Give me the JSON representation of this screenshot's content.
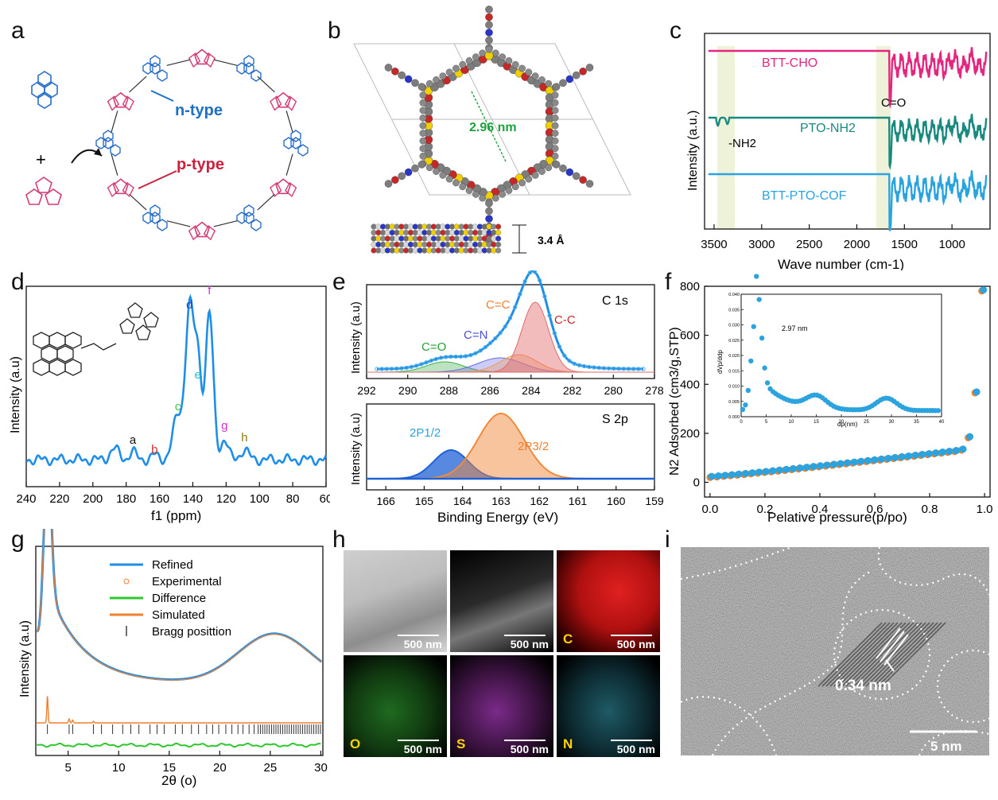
{
  "panel_labels": [
    "a",
    "b",
    "c",
    "d",
    "e",
    "f",
    "g",
    "h",
    "i"
  ],
  "panel_a": {
    "n_type": "n-type",
    "p_type": "p-type",
    "plus": "+"
  },
  "panel_b": {
    "pore": "2.96 nm",
    "spacing": "3.4 Å"
  },
  "colors": {
    "pink": "#e5267f",
    "teal": "#1a8a7f",
    "sky": "#2aa3de",
    "blue": "#1f8ee8",
    "orange": "#f07f2e",
    "green": "#2ec82e",
    "ink": "#111111"
  },
  "chart_data": [
    {
      "id": "c",
      "type": "line",
      "xlabel": "Wave number (cm-1)",
      "ylabel": "Intensity (a.u.)",
      "xlim": [
        3600,
        600
      ],
      "xticks": [
        3500,
        3000,
        2500,
        2000,
        1500,
        1000
      ],
      "series": [
        {
          "name": "BTT-CHO"
        },
        {
          "name": "PTO-NH2"
        },
        {
          "name": "BTT-PTO-COF"
        }
      ],
      "annotations": [
        "C=O",
        "-NH2"
      ]
    },
    {
      "id": "d",
      "type": "line",
      "xlabel": "f1 (ppm)",
      "ylabel": "Intensity (a.u)",
      "xlim": [
        240,
        60
      ],
      "xticks": [
        240,
        220,
        200,
        180,
        160,
        140,
        120,
        100,
        80,
        60
      ],
      "peaks": [
        {
          "label": "a",
          "x": 176
        },
        {
          "label": "b",
          "x": 163
        },
        {
          "label": "c",
          "x": 149
        },
        {
          "label": "d",
          "x": 142
        },
        {
          "label": "e",
          "x": 137
        },
        {
          "label": "f",
          "x": 130
        },
        {
          "label": "g",
          "x": 121
        },
        {
          "label": "h",
          "x": 109
        }
      ]
    },
    {
      "id": "e1",
      "type": "area",
      "title": "C 1s",
      "ylabel": "Intensity (a.u)",
      "xlim": [
        292,
        278
      ],
      "xticks": [
        292,
        290,
        288,
        286,
        284,
        282,
        280,
        278
      ],
      "components": [
        {
          "name": "C=O",
          "x": 288.2
        },
        {
          "name": "C=N",
          "x": 285.5
        },
        {
          "name": "C=C",
          "x": 284.6
        },
        {
          "name": "C-C",
          "x": 283.8
        }
      ]
    },
    {
      "id": "e2",
      "type": "area",
      "title": "S 2p",
      "xlabel": "Binding Energy (eV)",
      "ylabel": "Intensity (a.u)",
      "xlim": [
        166.5,
        159
      ],
      "xticks": [
        166,
        165,
        164,
        163,
        162,
        161,
        160,
        159
      ],
      "components": [
        {
          "name": "2P1/2",
          "x": 164.3
        },
        {
          "name": "2P3/2",
          "x": 163.0
        }
      ]
    },
    {
      "id": "f",
      "type": "scatter",
      "xlabel": "Pelative pressure(p/po)",
      "ylabel": "N2 Adsorbed (cm3/g,STP)",
      "xlim": [
        -0.02,
        1.02
      ],
      "ylim": [
        -60,
        800
      ],
      "xticks": [
        0.0,
        0.2,
        0.4,
        0.6,
        0.8,
        1.0
      ],
      "yticks": [
        0,
        200,
        400,
        600,
        800
      ],
      "inset": {
        "xlabel": "dp(nm)",
        "ylabel": "dVp/ddp",
        "xlim": [
          0,
          40
        ],
        "ylim": [
          0,
          0.04
        ],
        "xticks": [
          0,
          5,
          10,
          15,
          20,
          25,
          30,
          35,
          40
        ],
        "yticks": [
          0.0,
          0.005,
          0.01,
          0.015,
          0.02,
          0.025,
          0.03,
          0.035,
          0.04
        ],
        "annotation": "2.97 nm"
      }
    },
    {
      "id": "g",
      "type": "line",
      "xlabel": "2θ (o)",
      "ylabel": "Intensity (a.u)",
      "xlim": [
        1.8,
        30.2
      ],
      "xticks": [
        5,
        10,
        15,
        20,
        25,
        30
      ],
      "series": [
        {
          "name": "Refined"
        },
        {
          "name": "Experimental"
        },
        {
          "name": "Difference"
        },
        {
          "name": "Simulated"
        },
        {
          "name": "Bragg posittion"
        }
      ]
    }
  ],
  "panel_h": {
    "tiles": [
      {
        "cap": "",
        "scale": "500 nm"
      },
      {
        "cap": "",
        "scale": "500 nm"
      },
      {
        "cap": "C",
        "scale": "500 nm"
      },
      {
        "cap": "O",
        "scale": "500 nm"
      },
      {
        "cap": "S",
        "scale": "500 nm"
      },
      {
        "cap": "N",
        "scale": "500 nm"
      }
    ]
  },
  "panel_i": {
    "fringe": "0.34 nm",
    "scale": "5 nm"
  }
}
